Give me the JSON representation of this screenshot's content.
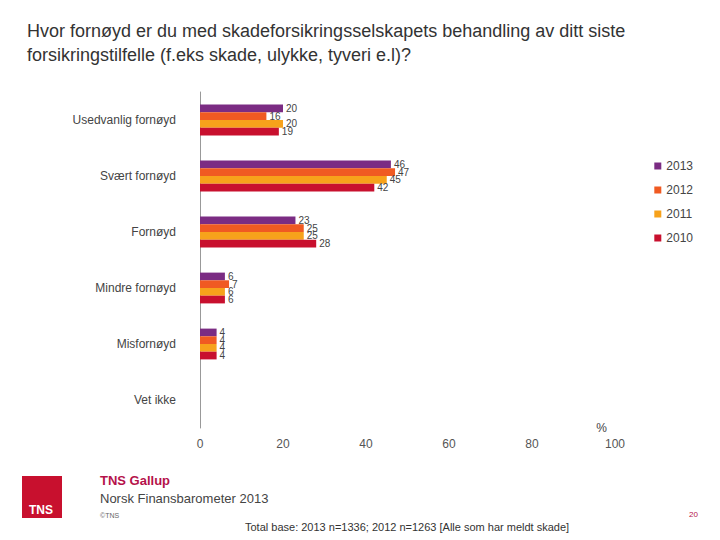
{
  "chart_data": {
    "type": "bar",
    "orientation": "horizontal",
    "title": "Hvor fornøyd er du med skadeforsikringsselskapets behandling av ditt siste forsikringstilfelle (f.eks skade, ulykke, tyveri e.l)?",
    "x_label": "%",
    "categories": [
      "Usedvanlig fornøyd",
      "Svært fornøyd",
      "Fornøyd",
      "Mindre fornøyd",
      "Misfornøyd",
      "Vet ikke"
    ],
    "series": [
      {
        "name": "2013",
        "color": "#7b2c83",
        "values": [
          20,
          46,
          23,
          6,
          4,
          null
        ]
      },
      {
        "name": "2012",
        "color": "#f05a22",
        "values": [
          16,
          47,
          25,
          7,
          4,
          null
        ]
      },
      {
        "name": "2011",
        "color": "#f7a21b",
        "values": [
          20,
          45,
          25,
          6,
          4,
          null
        ]
      },
      {
        "name": "2010",
        "color": "#c8102e",
        "values": [
          19,
          42,
          28,
          6,
          4,
          null
        ]
      }
    ],
    "xlim": [
      0,
      100
    ],
    "xticks": [
      0,
      20,
      40,
      60,
      80,
      100
    ],
    "grid": false,
    "legend": "right",
    "data_labels": true,
    "annotations": [
      "TNS Gallup",
      "Norsk Finansbarometer 2013",
      "©TNS",
      "20",
      "Total base: 2013 n=1336; 2012 n=1263 [Alle som har meldt skade]",
      "TNS"
    ]
  }
}
